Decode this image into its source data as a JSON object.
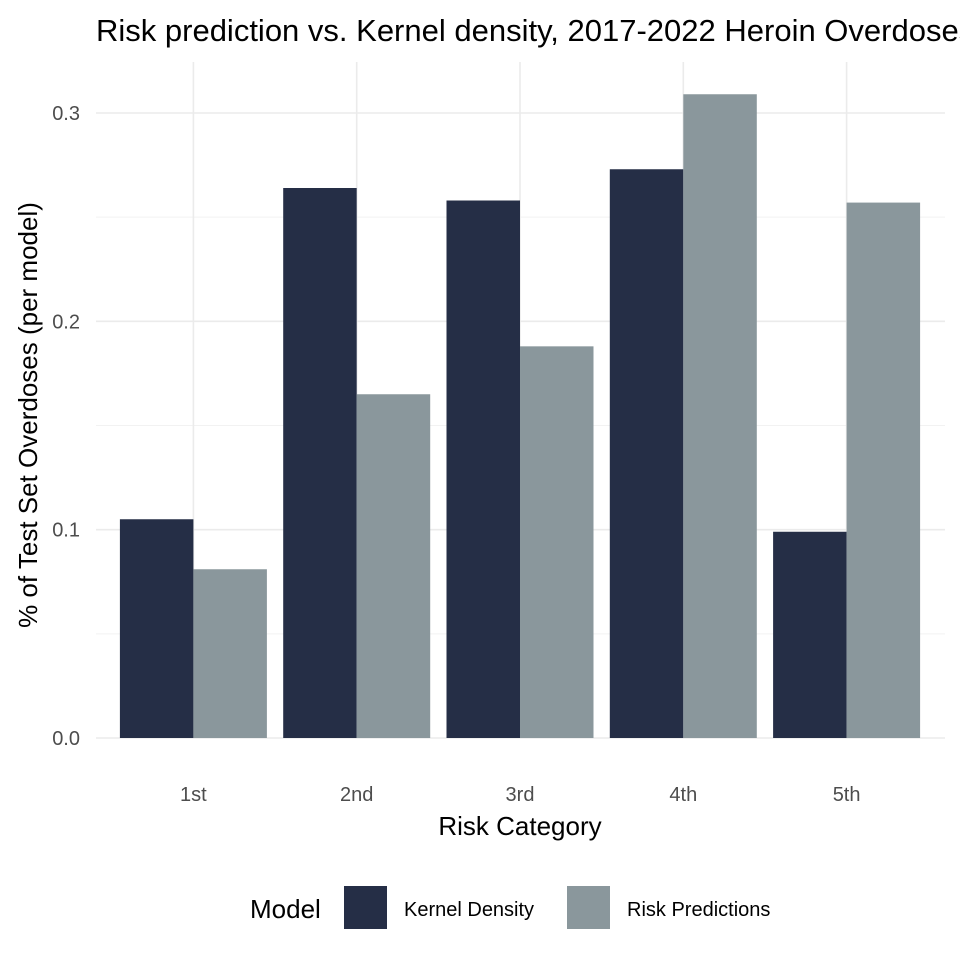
{
  "chart_data": {
    "type": "bar",
    "title": "Risk prediction vs. Kernel density, 2017-2022 Heroin Overdoses",
    "xlabel": "Risk Category",
    "ylabel": "% of Test Set Overdoses (per model)",
    "categories": [
      "1st",
      "2nd",
      "3rd",
      "4th",
      "5th"
    ],
    "series": [
      {
        "name": "Kernel Density",
        "color": "#252e46",
        "values": [
          0.105,
          0.264,
          0.258,
          0.273,
          0.099
        ]
      },
      {
        "name": "Risk Predictions",
        "color": "#8a979c",
        "values": [
          0.081,
          0.165,
          0.188,
          0.309,
          0.257
        ]
      }
    ],
    "ylim": [
      0,
      0.3
    ],
    "yticks": [
      "0.0",
      "0.1",
      "0.2",
      "0.3"
    ],
    "grid": true,
    "legend": {
      "title": "Model",
      "position": "bottom"
    }
  }
}
